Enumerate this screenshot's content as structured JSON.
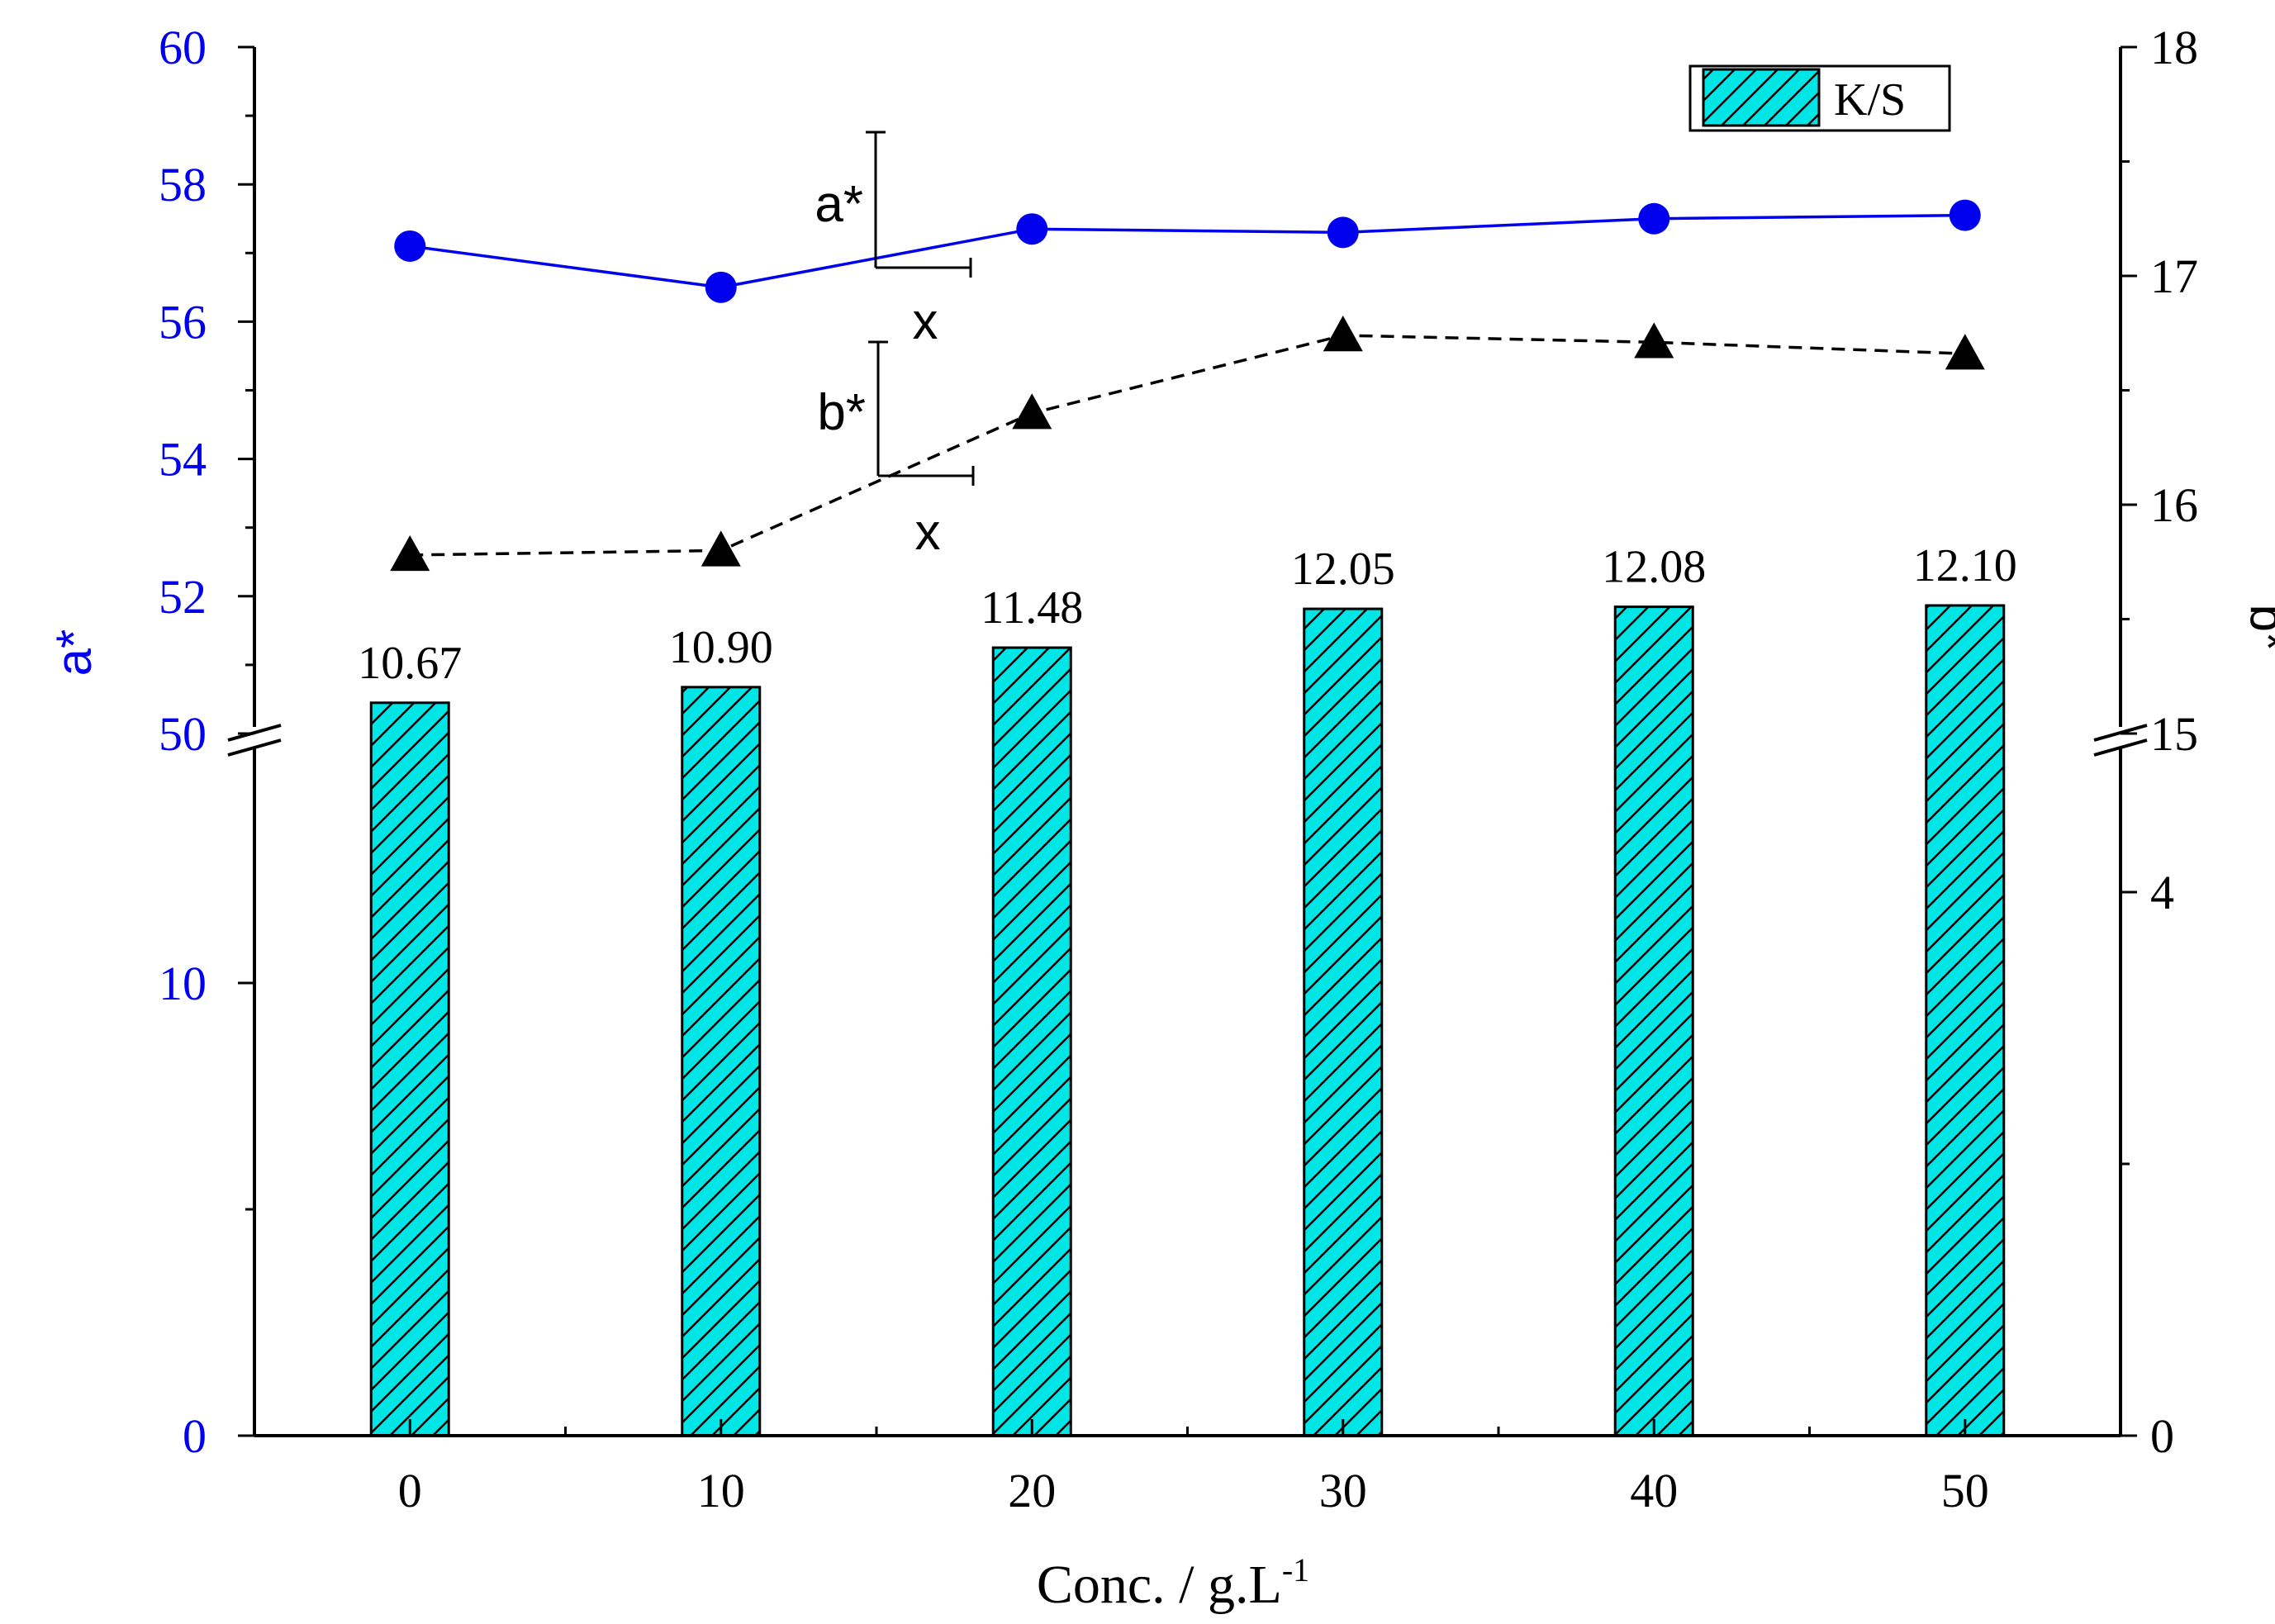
{
  "chart_data": {
    "type": "bar",
    "title": "",
    "xlabel": "Conc. / g.L",
    "xlabel_superscript": "-1",
    "categories": [
      "0",
      "10",
      "20",
      "30",
      "40",
      "50"
    ],
    "x": [
      0,
      10,
      20,
      30,
      40,
      50
    ],
    "xlim": [
      -5,
      55
    ],
    "series": [
      {
        "name": "K/S",
        "kind": "bar",
        "axis": "right",
        "values": [
          10.67,
          10.9,
          11.48,
          12.05,
          12.08,
          12.1
        ],
        "labels": [
          "10.67",
          "10.90",
          "11.48",
          "12.05",
          "12.08",
          "12.10"
        ],
        "color": "#00e5e5",
        "pattern": "diagonal hatch"
      },
      {
        "name": "a*",
        "kind": "line",
        "axis": "left",
        "marker": "circle",
        "line_style": "solid",
        "color": "#0000ee",
        "values": [
          57.1,
          56.5,
          57.35,
          57.3,
          57.5,
          57.55
        ]
      },
      {
        "name": "b*",
        "kind": "line",
        "axis": "right",
        "marker": "triangle",
        "line_style": "dashed",
        "color": "#000000",
        "values": [
          15.78,
          15.8,
          16.4,
          16.74,
          16.71,
          16.66
        ]
      }
    ],
    "left_axis": {
      "label": "a*",
      "color": "#0000ee",
      "broken": true,
      "lower_range": [
        0,
        15
      ],
      "upper_range": [
        50,
        60
      ],
      "lower_ticks": [
        "0",
        "10"
      ],
      "upper_ticks": [
        "50",
        "52",
        "54",
        "56",
        "58",
        "60"
      ]
    },
    "right_axis": {
      "label": "b*",
      "color": "#000000",
      "broken": true,
      "lower_range": [
        0,
        5
      ],
      "upper_range": [
        15,
        18
      ],
      "lower_ticks": [
        "0",
        "4"
      ],
      "upper_ticks": [
        "15",
        "16",
        "17",
        "18"
      ]
    },
    "legend": {
      "position": "top-right",
      "entries": [
        "K/S"
      ]
    },
    "annotations": {
      "a_scale": {
        "label": "a*",
        "x_label": "x"
      },
      "b_scale": {
        "label": "b*",
        "x_label": "x"
      }
    },
    "grid": false
  }
}
